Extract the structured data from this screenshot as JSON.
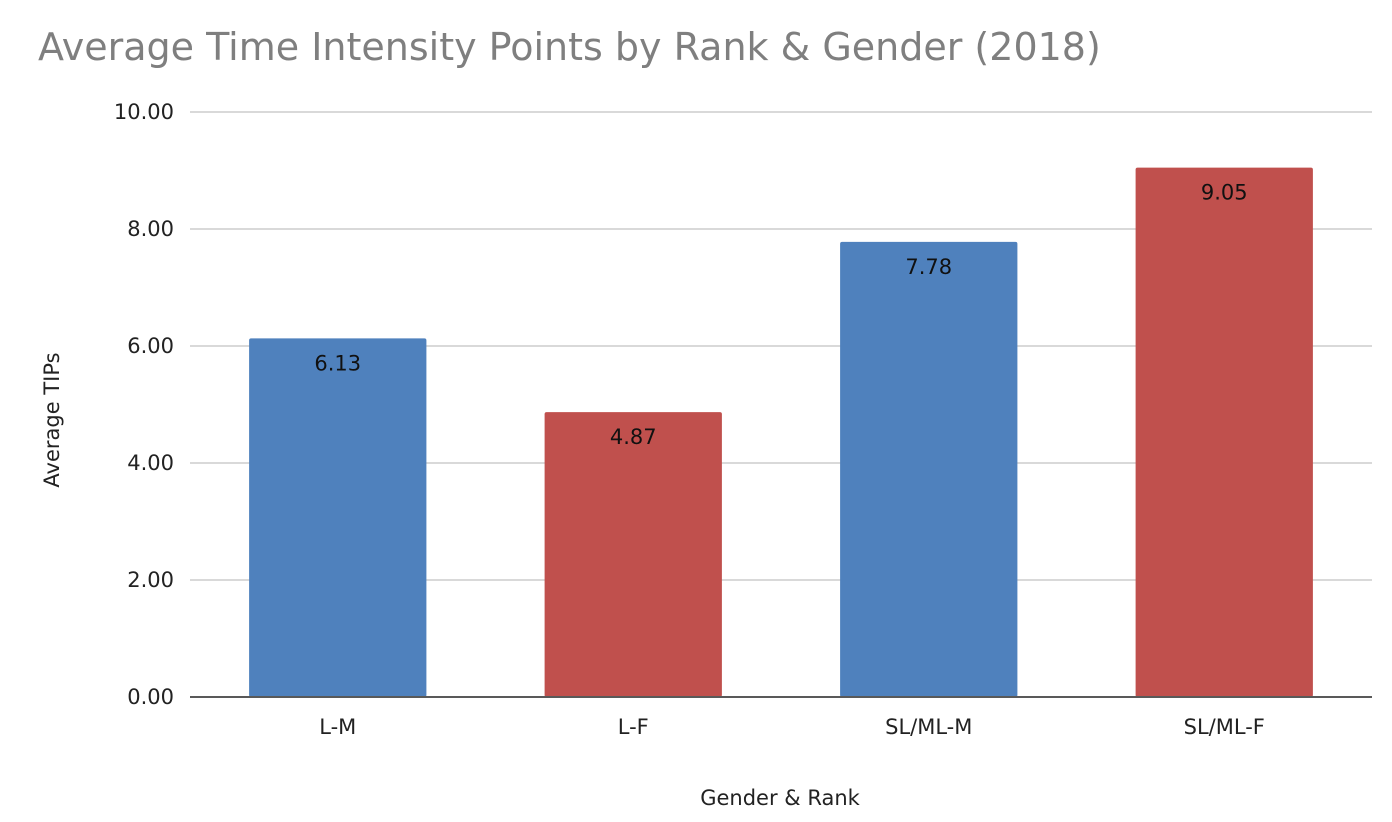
{
  "chart_data": {
    "type": "bar",
    "title": "Average Time Intensity Points by Rank & Gender (2018)",
    "xlabel": "Gender & Rank",
    "ylabel": "Average TIPs",
    "categories": [
      "L-M",
      "L-F",
      "SL/ML-M",
      "SL/ML-F"
    ],
    "values": [
      6.13,
      4.87,
      7.78,
      9.05
    ],
    "data_labels": [
      "6.13",
      "4.87",
      "7.78",
      "9.05"
    ],
    "bar_colors": [
      "#4f81bd",
      "#c0504d",
      "#4f81bd",
      "#c0504d"
    ],
    "ylim": [
      0,
      10
    ],
    "yticks": [
      0,
      2,
      4,
      6,
      8,
      10
    ],
    "ytick_labels": [
      "0.00",
      "2.00",
      "4.00",
      "6.00",
      "8.00",
      "10.00"
    ],
    "grid": true,
    "legend": "none",
    "gridline_color": "#d9d9d9",
    "axis_line_color": "#595959"
  }
}
